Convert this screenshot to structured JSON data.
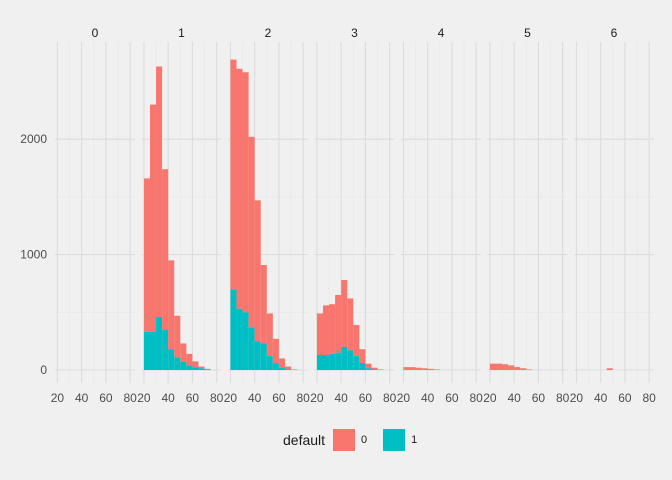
{
  "chart_data": {
    "type": "histogram-faceted",
    "facet_labels": [
      "0",
      "1",
      "2",
      "3",
      "4",
      "5",
      "6"
    ],
    "legend": {
      "title": "default",
      "entries": [
        {
          "label": "0",
          "color": "#F8766D"
        },
        {
          "label": "1",
          "color": "#00BFC4"
        }
      ]
    },
    "x_ticks": [
      20,
      40,
      60,
      80
    ],
    "y_ticks": [
      0,
      1000,
      2000
    ],
    "xlim": [
      18,
      84
    ],
    "ylim": [
      0,
      2800
    ],
    "bin_starts": [
      20,
      25,
      30,
      35,
      40,
      45,
      50,
      55,
      60,
      65,
      70,
      75
    ],
    "bin_width": 5,
    "panels": [
      {
        "facet": "0",
        "series": [
          {
            "name": "0",
            "values": [
              0,
              0,
              0,
              0,
              0,
              0,
              0,
              0,
              0,
              0,
              0,
              0
            ]
          },
          {
            "name": "1",
            "values": [
              0,
              0,
              0,
              0,
              0,
              0,
              0,
              0,
              0,
              0,
              0,
              0
            ]
          }
        ]
      },
      {
        "facet": "1",
        "series": [
          {
            "name": "0",
            "values": [
              1330,
              1970,
              2170,
              1390,
              770,
              360,
              160,
              100,
              50,
              15,
              5,
              0
            ]
          },
          {
            "name": "1",
            "values": [
              330,
              330,
              460,
              350,
              180,
              110,
              70,
              40,
              25,
              15,
              5,
              0
            ]
          }
        ]
      },
      {
        "facet": "2",
        "series": [
          {
            "name": "0",
            "values": [
              1990,
              2080,
              2080,
              1650,
              1220,
              680,
              370,
              210,
              80,
              25,
              5,
              0
            ]
          },
          {
            "name": "1",
            "values": [
              700,
              530,
              500,
              370,
              250,
              230,
              120,
              60,
              20,
              5,
              0,
              0
            ]
          }
        ]
      },
      {
        "facet": "3",
        "series": [
          {
            "name": "0",
            "values": [
              360,
              430,
              430,
              500,
              580,
              450,
              270,
              120,
              40,
              15,
              5,
              0
            ]
          },
          {
            "name": "1",
            "values": [
              130,
              130,
              140,
              150,
              200,
              170,
              120,
              60,
              15,
              5,
              0,
              0
            ]
          }
        ]
      },
      {
        "facet": "4",
        "series": [
          {
            "name": "0",
            "values": [
              25,
              25,
              20,
              15,
              10,
              5,
              0,
              0,
              0,
              0,
              0,
              0
            ]
          },
          {
            "name": "1",
            "values": [
              0,
              0,
              0,
              0,
              0,
              0,
              0,
              0,
              0,
              0,
              0,
              0
            ]
          }
        ]
      },
      {
        "facet": "5",
        "series": [
          {
            "name": "0",
            "values": [
              55,
              55,
              50,
              40,
              25,
              15,
              5,
              0,
              0,
              0,
              0,
              0
            ]
          },
          {
            "name": "1",
            "values": [
              0,
              0,
              0,
              0,
              0,
              0,
              0,
              0,
              0,
              0,
              0,
              0
            ]
          }
        ]
      },
      {
        "facet": "6",
        "series": [
          {
            "name": "0",
            "values": [
              0,
              0,
              0,
              0,
              0,
              15,
              0,
              0,
              0,
              0,
              0,
              0
            ]
          },
          {
            "name": "1",
            "values": [
              0,
              0,
              0,
              0,
              0,
              0,
              0,
              0,
              0,
              0,
              0,
              0
            ]
          }
        ]
      }
    ]
  }
}
